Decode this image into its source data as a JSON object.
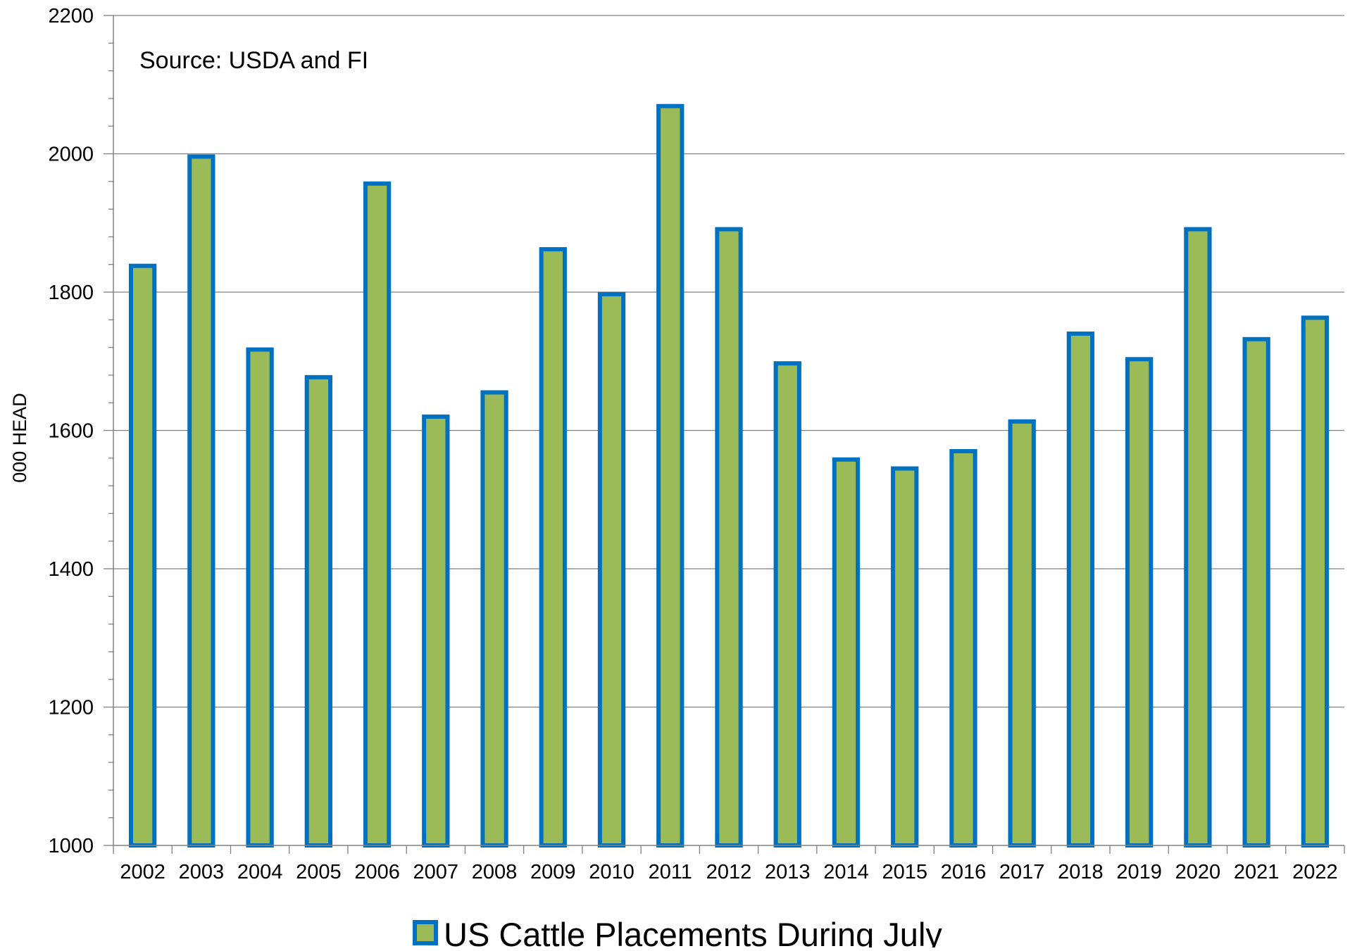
{
  "chart_data": {
    "type": "bar",
    "source_note": "Source: USDA and FI",
    "ylabel": "000 HEAD",
    "xlabel": "",
    "ylim": [
      1000,
      2200
    ],
    "yticks": [
      1000,
      1200,
      1400,
      1600,
      1800,
      2000,
      2200
    ],
    "yticks_labels": [
      "1000",
      "1200",
      "1400",
      "1600",
      "1800",
      "2000",
      "2200"
    ],
    "minor_tick_step": 40,
    "grid": true,
    "legend_position": "bottom",
    "categories": [
      "2002",
      "2003",
      "2004",
      "2005",
      "2006",
      "2007",
      "2008",
      "2009",
      "2010",
      "2011",
      "2012",
      "2013",
      "2014",
      "2015",
      "2016",
      "2017",
      "2018",
      "2019",
      "2020",
      "2021",
      "2022"
    ],
    "series": [
      {
        "name": "US Cattle Placements During July",
        "values": [
          1838,
          1996,
          1717,
          1677,
          1957,
          1620,
          1655,
          1862,
          1797,
          2069,
          1891,
          1697,
          1558,
          1545,
          1570,
          1613,
          1740,
          1703,
          1891,
          1732,
          1763
        ]
      }
    ],
    "colors": {
      "bar_fill": "#9BBB59",
      "bar_border": "#0070C0",
      "gridline": "#808080",
      "axis": "#808080"
    }
  }
}
